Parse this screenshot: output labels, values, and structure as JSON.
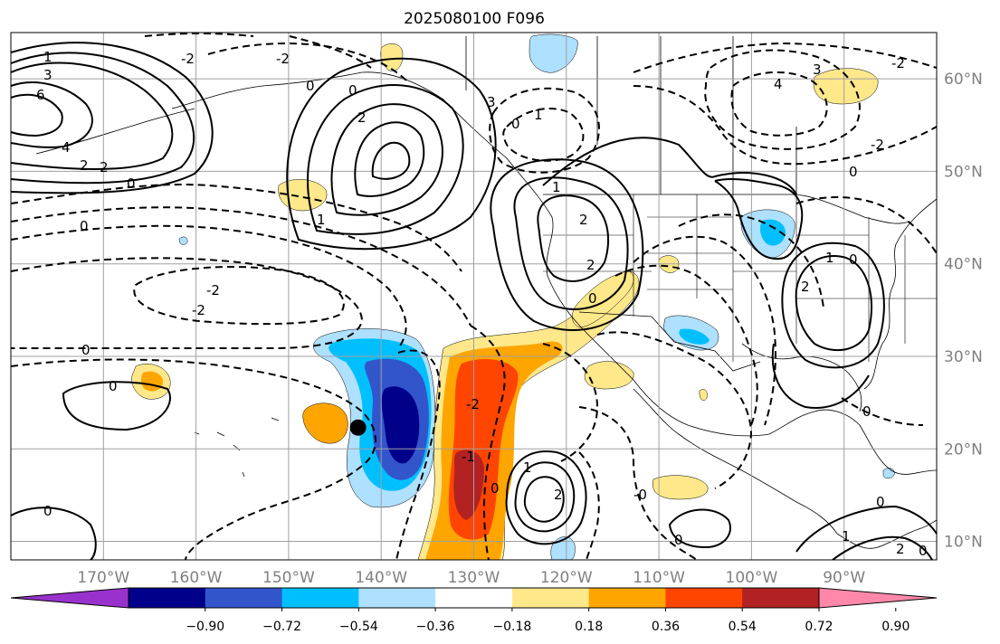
{
  "title": "2025080100 F096",
  "map": {
    "lon_range": [
      -180,
      -80
    ],
    "lat_range": [
      8,
      65
    ],
    "lon_ticks": [
      {
        "value": -170,
        "label": "170°W"
      },
      {
        "value": -160,
        "label": "160°W"
      },
      {
        "value": -150,
        "label": "150°W"
      },
      {
        "value": -140,
        "label": "140°W"
      },
      {
        "value": -130,
        "label": "130°W"
      },
      {
        "value": -120,
        "label": "120°W"
      },
      {
        "value": -110,
        "label": "110°W"
      },
      {
        "value": -100,
        "label": "100°W"
      },
      {
        "value": -90,
        "label": "90°W"
      }
    ],
    "lat_ticks": [
      {
        "value": 60,
        "label": "60°N"
      },
      {
        "value": 50,
        "label": "50°N"
      },
      {
        "value": 40,
        "label": "40°N"
      },
      {
        "value": 30,
        "label": "30°N"
      },
      {
        "value": 20,
        "label": "20°N"
      },
      {
        "value": 10,
        "label": "10°N"
      }
    ],
    "grid": true,
    "marker": {
      "lon": -142.5,
      "lat": 22.3,
      "color": "#000000"
    }
  },
  "colorbar": {
    "colors": [
      "#9932cc",
      "#00008b",
      "#3355cc",
      "#00bfff",
      "#aee0ff",
      "#ffffff",
      "#ffe88a",
      "#ffa500",
      "#ff4500",
      "#b22222",
      "#ff88aa"
    ],
    "labels": [
      "−0.90",
      "−0.72",
      "−0.54",
      "−0.36",
      "−0.18",
      "0.18",
      "0.36",
      "0.54",
      "0.72",
      "0.90"
    ],
    "extend": "both"
  },
  "contour_labels": [
    "0",
    "1",
    "2",
    "3",
    "4",
    "6",
    "-1",
    "-2",
    "-0"
  ]
}
